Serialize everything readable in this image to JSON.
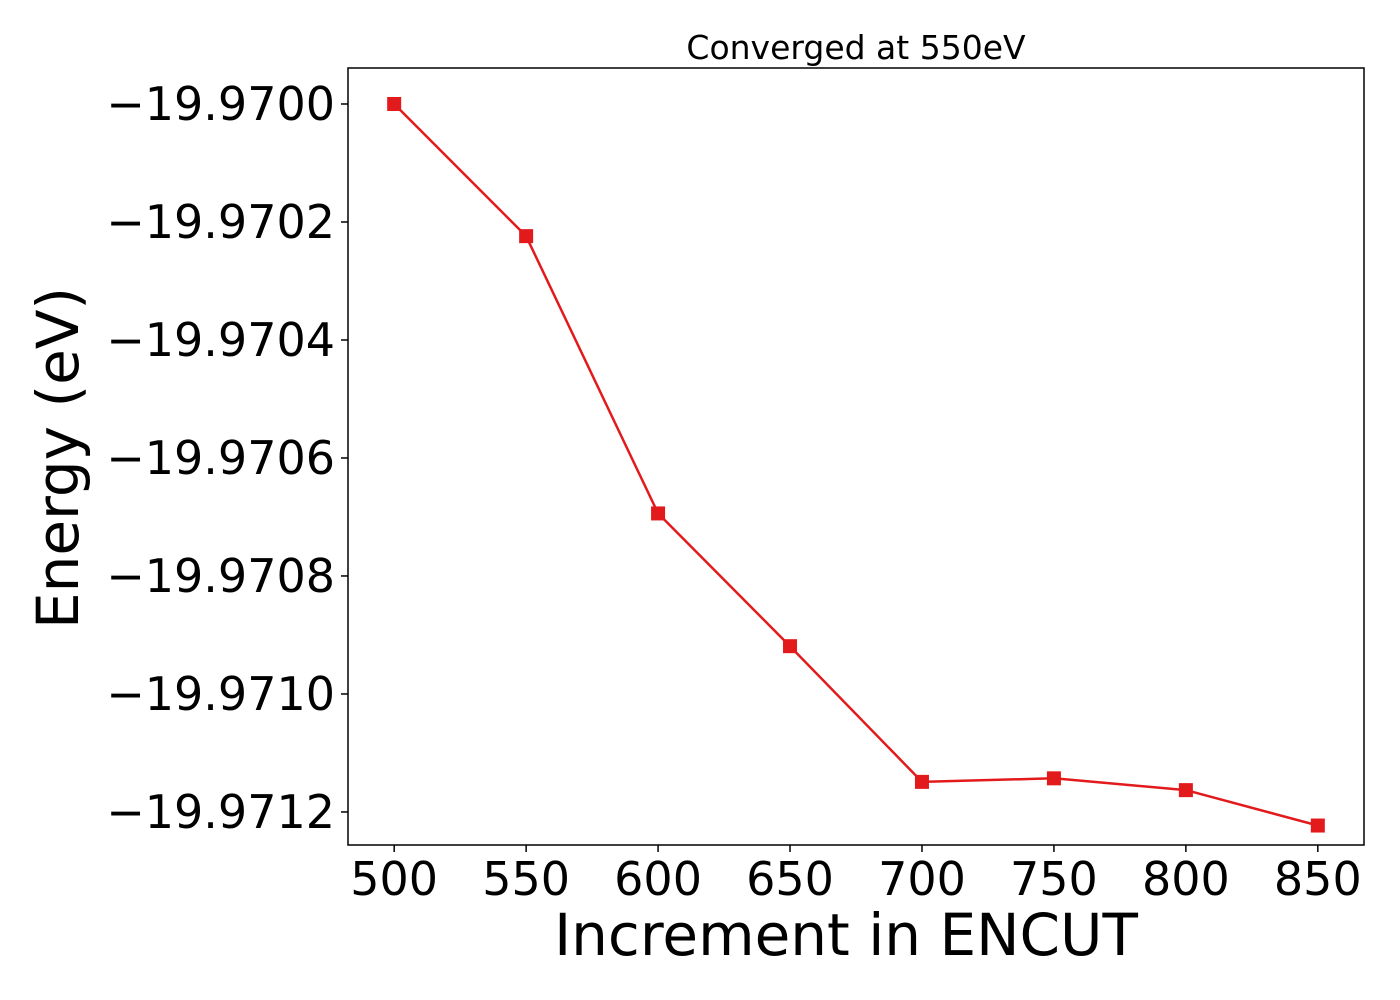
{
  "chart_data": {
    "type": "line",
    "title": "Converged at 550eV",
    "xlabel": "Increment in ENCUT",
    "ylabel": "Energy (eV)",
    "x": [
      500,
      550,
      600,
      650,
      700,
      750,
      800,
      850
    ],
    "series": [
      {
        "values": [
          -19.97,
          -19.970224,
          -19.970694,
          -19.970919,
          -19.971149,
          -19.971143,
          -19.971163,
          -19.971223
        ],
        "color": "#e31a1c",
        "marker": "square"
      }
    ],
    "xlim": [
      482.5,
      867.5
    ],
    "ylim": [
      -19.971256,
      -19.969939
    ],
    "xticks": [
      500,
      550,
      600,
      650,
      700,
      750,
      800,
      850
    ],
    "xtick_labels": [
      "500",
      "550",
      "600",
      "650",
      "700",
      "750",
      "800",
      "850"
    ],
    "yticks": [
      -19.97,
      -19.9702,
      -19.9704,
      -19.9706,
      -19.9708,
      -19.971,
      -19.9712
    ],
    "ytick_labels": [
      "−19.9700",
      "−19.9702",
      "−19.9704",
      "−19.9706",
      "−19.9708",
      "−19.9710",
      "−19.9712"
    ],
    "grid": false,
    "legend": "none"
  }
}
